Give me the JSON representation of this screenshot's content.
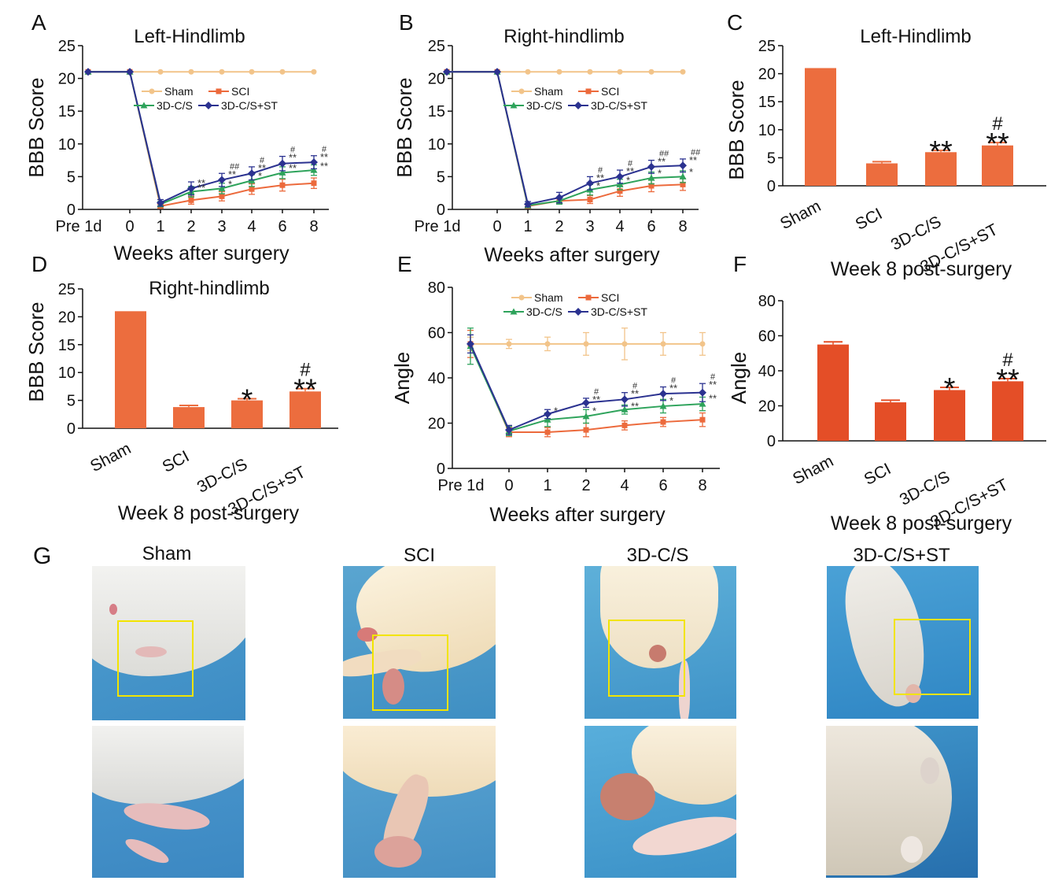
{
  "colors": {
    "sham": "#f2c48a",
    "sci": "#ec6a3c",
    "c3d": "#2ea35b",
    "c3dst": "#2b3290",
    "bar": "#ec6d3e",
    "bar_f": "#e44e27"
  },
  "chart_data": [
    {
      "panel": "A",
      "type": "line",
      "title": "Left-Hindlimb",
      "xlabel": "Weeks after surgery",
      "ylabel": "BBB Score",
      "categories": [
        "Pre 1d",
        "0",
        "1",
        "2",
        "3",
        "4",
        "6",
        "8"
      ],
      "ylim": [
        0,
        25
      ],
      "yticks": [
        0,
        5,
        10,
        15,
        20,
        25
      ],
      "legend": [
        "Sham",
        "SCI",
        "3D-C/S",
        "3D-C/S+ST"
      ],
      "series": [
        {
          "name": "Sham",
          "key": "sham",
          "values": [
            21,
            21,
            21,
            21,
            21,
            21,
            21,
            21
          ],
          "err": [
            0,
            0,
            0,
            0,
            0,
            0,
            0,
            0
          ]
        },
        {
          "name": "SCI",
          "key": "sci",
          "values": [
            21,
            21,
            0.5,
            1.4,
            2.0,
            3.1,
            3.7,
            4.0
          ],
          "err": [
            0,
            0,
            0.3,
            0.6,
            0.7,
            0.8,
            0.9,
            0.8
          ]
        },
        {
          "name": "3D-C/S",
          "key": "c3d",
          "values": [
            21,
            21,
            0.8,
            2.7,
            3.2,
            4.4,
            5.6,
            6.0
          ],
          "err": [
            0,
            0,
            0.4,
            0.8,
            0.8,
            0.9,
            0.9,
            0.8
          ]
        },
        {
          "name": "3D-C/S+ST",
          "key": "c3dst",
          "values": [
            21,
            21,
            1.0,
            3.2,
            4.5,
            5.5,
            7.0,
            7.2
          ],
          "err": [
            0,
            0,
            0.5,
            1.0,
            1.0,
            1.0,
            1.1,
            1.0
          ]
        }
      ],
      "annotations": [
        {
          "idx": 3,
          "series": "c3d",
          "text": "**"
        },
        {
          "idx": 3,
          "series": "c3dst",
          "text": "**"
        },
        {
          "idx": 4,
          "series": "c3d",
          "text": "*"
        },
        {
          "idx": 4,
          "series": "c3dst",
          "text": "**",
          "hash": "##"
        },
        {
          "idx": 5,
          "series": "c3d",
          "text": "*"
        },
        {
          "idx": 5,
          "series": "c3dst",
          "text": "**",
          "hash": "#"
        },
        {
          "idx": 6,
          "series": "c3d",
          "text": "**"
        },
        {
          "idx": 6,
          "series": "c3dst",
          "text": "**",
          "hash": "#"
        },
        {
          "idx": 7,
          "series": "c3d",
          "text": "**"
        },
        {
          "idx": 7,
          "series": "c3dst",
          "text": "**",
          "hash": "#"
        }
      ]
    },
    {
      "panel": "B",
      "type": "line",
      "title": "Right-hindlimb",
      "xlabel": "Weeks after surgery",
      "ylabel": "BBB Score",
      "categories": [
        "Pre 1d",
        "0",
        "1",
        "2",
        "3",
        "4",
        "6",
        "8"
      ],
      "ylim": [
        0,
        25
      ],
      "yticks": [
        0,
        5,
        10,
        15,
        20,
        25
      ],
      "legend": [
        "Sham",
        "SCI",
        "3D-C/S",
        "3D-C/S+ST"
      ],
      "series": [
        {
          "name": "Sham",
          "key": "sham",
          "values": [
            21,
            21,
            21,
            21,
            21,
            21,
            21,
            21
          ],
          "err": [
            0,
            0,
            0,
            0,
            0,
            0,
            0,
            0
          ]
        },
        {
          "name": "SCI",
          "key": "sci",
          "values": [
            21,
            21,
            0.5,
            1.3,
            1.5,
            2.8,
            3.6,
            3.8
          ],
          "err": [
            0,
            0,
            0.3,
            0.5,
            0.6,
            0.8,
            0.9,
            0.9
          ]
        },
        {
          "name": "3D-C/S",
          "key": "c3d",
          "values": [
            21,
            21,
            0.6,
            1.3,
            3.0,
            3.8,
            4.8,
            5.0
          ],
          "err": [
            0,
            0,
            0.3,
            0.5,
            0.8,
            0.8,
            0.9,
            0.9
          ]
        },
        {
          "name": "3D-C/S+ST",
          "key": "c3dst",
          "values": [
            21,
            21,
            0.8,
            1.8,
            4.0,
            5.0,
            6.5,
            6.7
          ],
          "err": [
            0,
            0,
            0.4,
            0.8,
            1.0,
            1.0,
            1.0,
            1.0
          ]
        }
      ],
      "annotations": [
        {
          "idx": 4,
          "series": "c3d",
          "text": "*"
        },
        {
          "idx": 4,
          "series": "c3dst",
          "text": "**",
          "hash": "#"
        },
        {
          "idx": 5,
          "series": "c3d",
          "text": "*"
        },
        {
          "idx": 5,
          "series": "c3dst",
          "text": "**",
          "hash": "#"
        },
        {
          "idx": 6,
          "series": "c3d",
          "text": "*"
        },
        {
          "idx": 6,
          "series": "c3dst",
          "text": "**",
          "hash": "##"
        },
        {
          "idx": 7,
          "series": "c3d",
          "text": "*"
        },
        {
          "idx": 7,
          "series": "c3dst",
          "text": "**",
          "hash": "##"
        }
      ]
    },
    {
      "panel": "C",
      "type": "bar",
      "title": "Left-Hindlimb",
      "xlabel": "Week 8 post-surgery",
      "ylabel": "BBB Score",
      "categories": [
        "Sham",
        "SCI",
        "3D-C/S",
        "3D-C/S+ST"
      ],
      "values": [
        21,
        4.0,
        6.0,
        7.2
      ],
      "err": [
        0,
        0.3,
        0.3,
        0.5
      ],
      "ylim": [
        0,
        25
      ],
      "yticks": [
        0,
        5,
        10,
        15,
        20,
        25
      ],
      "annotations": [
        {
          "idx": 2,
          "text": "**"
        },
        {
          "idx": 3,
          "text": "**",
          "hash": "#"
        }
      ]
    },
    {
      "panel": "D",
      "type": "bar",
      "title": "Right-hindlimb",
      "xlabel": "Week 8 post-surgery",
      "ylabel": "BBB Score",
      "categories": [
        "Sham",
        "SCI",
        "3D-C/S",
        "3D-C/S+ST"
      ],
      "values": [
        21,
        3.8,
        5.0,
        6.6
      ],
      "err": [
        0,
        0.3,
        0.3,
        0.5
      ],
      "ylim": [
        0,
        25
      ],
      "yticks": [
        0,
        5,
        10,
        15,
        20,
        25
      ],
      "annotations": [
        {
          "idx": 2,
          "text": "*"
        },
        {
          "idx": 3,
          "text": "**",
          "hash": "#"
        }
      ]
    },
    {
      "panel": "E",
      "type": "line",
      "title": "",
      "xlabel": "Weeks after surgery",
      "ylabel": "Angle",
      "categories": [
        "Pre 1d",
        "0",
        "1",
        "2",
        "4",
        "6",
        "8"
      ],
      "ylim": [
        0,
        80
      ],
      "yticks": [
        0,
        20,
        40,
        60,
        80
      ],
      "legend": [
        "Sham",
        "SCI",
        "3D-C/S",
        "3D-C/S+ST"
      ],
      "series": [
        {
          "name": "Sham",
          "key": "sham",
          "values": [
            55,
            55,
            55,
            55,
            55,
            55,
            55
          ],
          "err": [
            3,
            2,
            3,
            5,
            7,
            5,
            5
          ]
        },
        {
          "name": "SCI",
          "key": "sci",
          "values": [
            55,
            16,
            16,
            17,
            19,
            20.5,
            21.5
          ],
          "err": [
            6,
            2,
            2,
            3,
            2,
            2,
            3
          ]
        },
        {
          "name": "3D-C/S",
          "key": "c3d",
          "values": [
            54,
            16.5,
            21.5,
            23,
            26,
            27.5,
            28.5
          ],
          "err": [
            8,
            2,
            3,
            3,
            2,
            3,
            3
          ]
        },
        {
          "name": "3D-C/S+ST",
          "key": "c3dst",
          "values": [
            55,
            17,
            24,
            29,
            30.5,
            33,
            33.5
          ],
          "err": [
            4,
            2,
            2,
            2,
            3,
            3,
            4
          ]
        }
      ],
      "annotations": [
        {
          "idx": 2,
          "series": "c3dst",
          "text": "*"
        },
        {
          "idx": 3,
          "series": "c3d",
          "text": "*"
        },
        {
          "idx": 3,
          "series": "c3dst",
          "text": "**",
          "hash": "#"
        },
        {
          "idx": 4,
          "series": "c3d",
          "text": "**"
        },
        {
          "idx": 4,
          "series": "c3dst",
          "text": "**",
          "hash": "#"
        },
        {
          "idx": 5,
          "series": "c3d",
          "text": "*"
        },
        {
          "idx": 5,
          "series": "c3dst",
          "text": "**",
          "hash": "#"
        },
        {
          "idx": 6,
          "series": "c3d",
          "text": "**"
        },
        {
          "idx": 6,
          "series": "c3dst",
          "text": "**",
          "hash": "#"
        }
      ]
    },
    {
      "panel": "F",
      "type": "bar",
      "title": "",
      "xlabel": "Week 8 post-surgery",
      "ylabel": "Angle",
      "categories": [
        "Sham",
        "SCI",
        "3D-C/S",
        "3D-C/S+ST"
      ],
      "values": [
        55,
        22,
        29,
        34
      ],
      "err": [
        1.5,
        1.2,
        1.5,
        1.5
      ],
      "ylim": [
        0,
        80
      ],
      "yticks": [
        0,
        20,
        40,
        60,
        80
      ],
      "annotations": [
        {
          "idx": 2,
          "text": "*"
        },
        {
          "idx": 3,
          "text": "**",
          "hash": "#"
        }
      ]
    }
  ],
  "panel_g": {
    "letter": "G",
    "titles": [
      "Sham",
      "SCI",
      "3D-C/S",
      "3D-C/S+ST"
    ]
  }
}
